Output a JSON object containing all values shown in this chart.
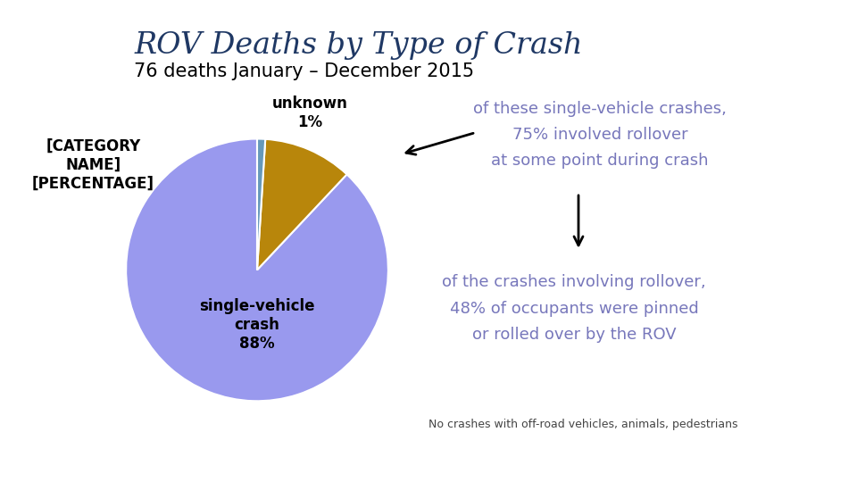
{
  "title": "ROV Deaths by Type of Crash",
  "subtitle": "76 deaths January – December 2015",
  "title_color": "#1F3864",
  "title_fontsize": 24,
  "subtitle_fontsize": 15,
  "slices": [
    88,
    11,
    1
  ],
  "slice_colors": [
    "#9999EE",
    "#B8860B",
    "#6699BB"
  ],
  "label_sv": "single-vehicle\ncrash\n88%",
  "label_cat": "[CATEGORY\nNAME]\n[PERCENTAGE]",
  "label_unk": "unknown\n1%",
  "label_fontsize": 12,
  "annotation1_text": "of these single-vehicle crashes,\n75% involved rollover\nat some point during crash",
  "annotation2_text": "of the crashes involving rollover,\n48% of occupants were pinned\nor rolled over by the ROV",
  "annotation_color": "#7777BB",
  "annotation_fontsize": 13,
  "footnote": "No crashes with off-road vehicles, animals, pedestrians",
  "footnote_fontsize": 9,
  "footnote_color": "#444444",
  "bg_color": "#FFFFFF",
  "bar_color": "#999999",
  "startangle": 90
}
